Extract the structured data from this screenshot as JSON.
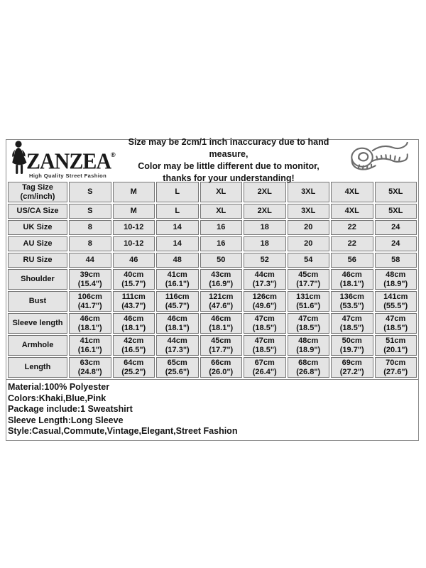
{
  "brand": {
    "name": "ZANZEA",
    "registered_mark": "®",
    "tagline": "High Quality Street Fashion"
  },
  "header": {
    "notice_lines": [
      "Size may be 2cm/1 inch inaccuracy due to hand measure,",
      "Color may be little different due to monitor,",
      "thanks for your understanding!"
    ]
  },
  "size_chart": {
    "rows": [
      {
        "label": "Tag Size\n(cm/inch)",
        "values": [
          "S",
          "M",
          "L",
          "XL",
          "2XL",
          "3XL",
          "4XL",
          "5XL"
        ]
      },
      {
        "label": "US/CA Size",
        "values": [
          "S",
          "M",
          "L",
          "XL",
          "2XL",
          "3XL",
          "4XL",
          "5XL"
        ]
      },
      {
        "label": "UK Size",
        "values": [
          "8",
          "10-12",
          "14",
          "16",
          "18",
          "20",
          "22",
          "24"
        ]
      },
      {
        "label": "AU Size",
        "values": [
          "8",
          "10-12",
          "14",
          "16",
          "18",
          "20",
          "22",
          "24"
        ]
      },
      {
        "label": "RU Size",
        "values": [
          "44",
          "46",
          "48",
          "50",
          "52",
          "54",
          "56",
          "58"
        ]
      },
      {
        "label": "Shoulder",
        "values": [
          "39cm\n(15.4\")",
          "40cm\n(15.7\")",
          "41cm\n(16.1\")",
          "43cm\n(16.9\")",
          "44cm\n(17.3\")",
          "45cm\n(17.7\")",
          "46cm\n(18.1\")",
          "48cm\n(18.9\")"
        ]
      },
      {
        "label": "Bust",
        "values": [
          "106cm\n(41.7\")",
          "111cm\n(43.7\")",
          "116cm\n(45.7\")",
          "121cm\n(47.6\")",
          "126cm\n(49.6\")",
          "131cm\n(51.6\")",
          "136cm\n(53.5\")",
          "141cm\n(55.5\")"
        ]
      },
      {
        "label": "Sleeve length",
        "values": [
          "46cm\n(18.1\")",
          "46cm\n(18.1\")",
          "46cm\n(18.1\")",
          "46cm\n(18.1\")",
          "47cm\n(18.5\")",
          "47cm\n(18.5\")",
          "47cm\n(18.5\")",
          "47cm\n(18.5\")"
        ]
      },
      {
        "label": "Armhole",
        "values": [
          "41cm\n(16.1\")",
          "42cm\n(16.5\")",
          "44cm\n(17.3\")",
          "45cm\n(17.7\")",
          "47cm\n(18.5\")",
          "48cm\n(18.9\")",
          "50cm\n(19.7\")",
          "51cm\n(20.1\")"
        ]
      },
      {
        "label": "Length",
        "values": [
          "63cm\n(24.8\")",
          "64cm\n(25.2\")",
          "65cm\n(25.6\")",
          "66cm\n(26.0\")",
          "67cm\n(26.4\")",
          "68cm\n(26.8\")",
          "69cm\n(27.2\")",
          "70cm\n(27.6\")"
        ]
      }
    ]
  },
  "notes": [
    "Material:100% Polyester",
    "Colors:Khaki,Blue,Pink",
    "Package include:1 Sweatshirt",
    "Sleeve Length:Long Sleeve",
    "Style:Casual,Commute,Vintage,Elegant,Street Fashion"
  ],
  "colors": {
    "cell_bg": "#e4e4e4",
    "cell_border": "#767676",
    "outer_border": "#8c8c8c",
    "text": "#111111"
  }
}
